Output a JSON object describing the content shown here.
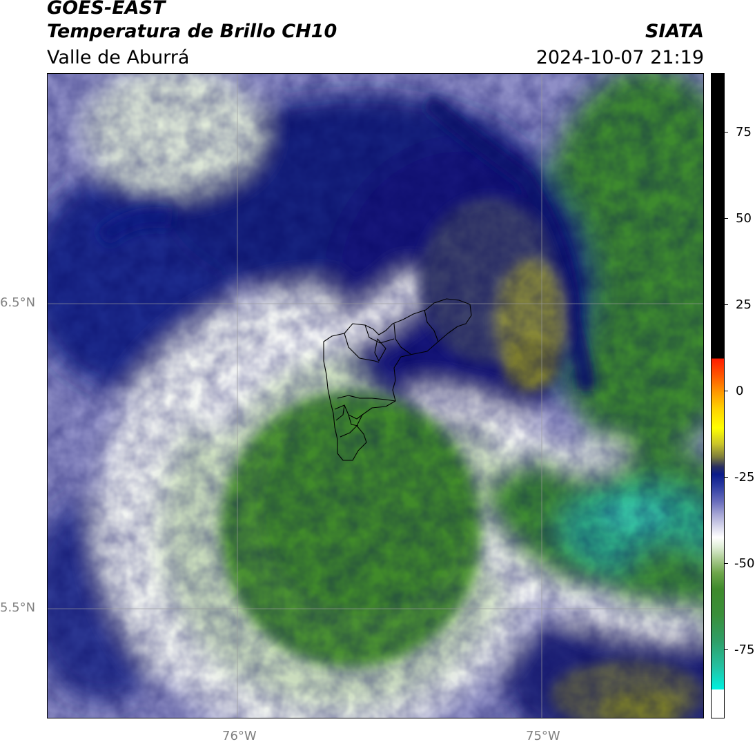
{
  "header": {
    "satellite": "GOES-EAST",
    "product": "Temperatura de Brillo CH10",
    "region": "Valle de Aburrá",
    "organization": "SIATA",
    "datetime": "2024-10-07 21:19"
  },
  "map": {
    "lat_labels": [
      "6.5°N",
      "5.5°N"
    ],
    "lon_labels": [
      "76°W",
      "75°W"
    ],
    "colors": {
      "cold_tops": "#2b2e60",
      "deep_blue": "#0d1a80",
      "lavender": "#9c9ccc",
      "white": "#ffffff",
      "pale_green": "#d6e6cc",
      "green": "#3f8a2a",
      "teal": "#30c0a0",
      "olive": "#7a7d2a"
    }
  },
  "colorbar": {
    "ticks": [
      "75",
      "50",
      "25",
      "0",
      "-25",
      "-50",
      "-75"
    ],
    "tick_values": [
      75,
      50,
      25,
      0,
      -25,
      -50,
      -75
    ],
    "range": [
      -95,
      92
    ]
  }
}
